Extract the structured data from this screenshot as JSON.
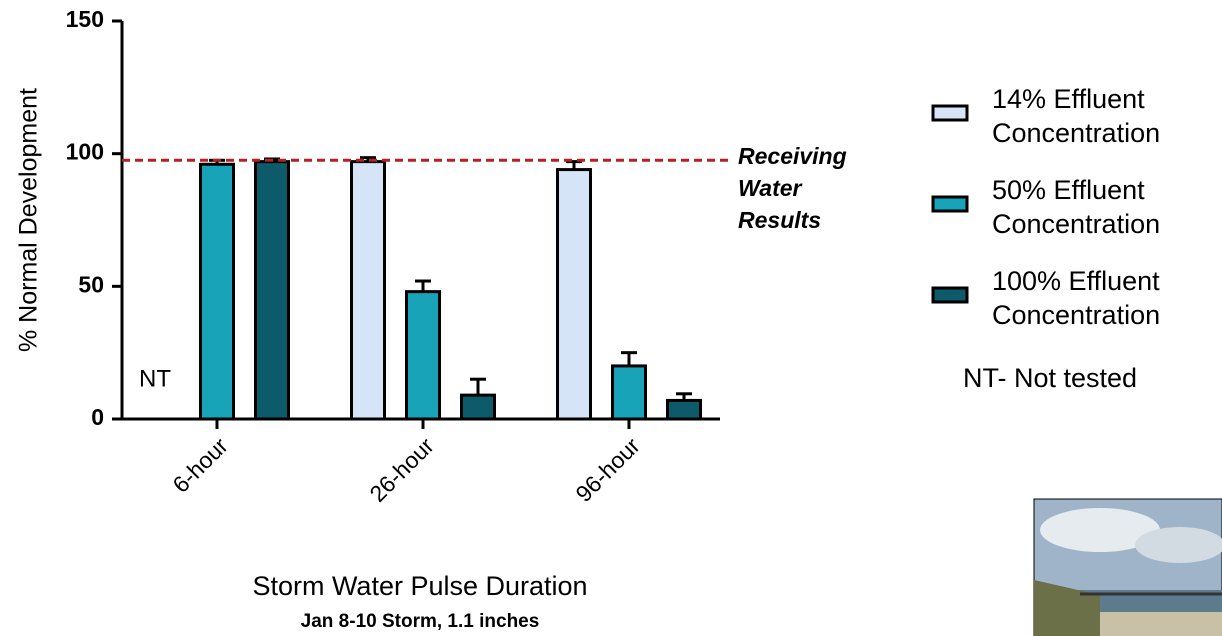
{
  "chart_data": {
    "type": "bar",
    "y_label": "% Normal Development",
    "x_label": "Storm Water Pulse Duration",
    "subtitle": "Jan 8-10 Storm, 1.1 inches",
    "categories": [
      "6-hour",
      "26-hour",
      "96-hour"
    ],
    "series": [
      {
        "name": "14% Effluent Concentration",
        "color": "#d6e4f7",
        "values": [
          null,
          97,
          94
        ],
        "errors": [
          null,
          1.5,
          3
        ]
      },
      {
        "name": "50% Effluent Concentration",
        "color": "#19a3b8",
        "values": [
          96,
          48,
          20
        ],
        "errors": [
          1.5,
          4,
          5
        ]
      },
      {
        "name": "100% Effluent Concentration",
        "color": "#0d5a6a",
        "values": [
          97,
          9,
          7
        ],
        "errors": [
          1,
          6,
          2.5
        ]
      }
    ],
    "ylim": [
      0,
      150
    ],
    "yticks": [
      0,
      50,
      100,
      150
    ],
    "reference_line": {
      "value": 97.5,
      "label": "Receiving Water Results",
      "color": "#b22222"
    },
    "na_label": "NT",
    "na_note": "NT- Not tested"
  }
}
